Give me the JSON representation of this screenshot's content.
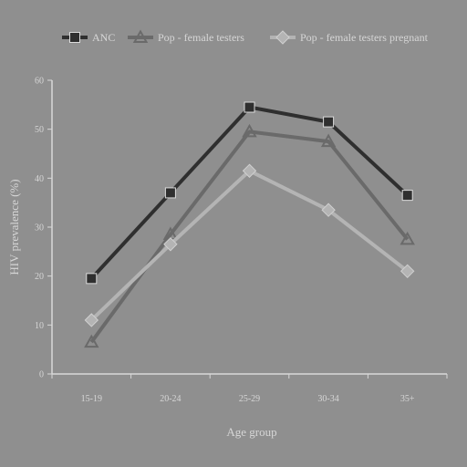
{
  "chart_data": {
    "type": "line",
    "title": "",
    "xlabel": "Age group",
    "ylabel": "HIV prevalence (%)",
    "categories": [
      "15-19",
      "20-24",
      "25-29",
      "30-34",
      "35+"
    ],
    "ylim": [
      0,
      60
    ],
    "yticks": [
      0,
      10,
      20,
      30,
      40,
      50,
      60
    ],
    "grid": false,
    "legend": "top",
    "series": [
      {
        "name": "ANC",
        "values": [
          19.5,
          37,
          54.5,
          51.5,
          36.5
        ],
        "color": "#2f2f2f",
        "marker": "square"
      },
      {
        "name": "Pop - female testers",
        "values": [
          6.5,
          28.5,
          49.5,
          47.5,
          27.5
        ],
        "color": "#6a6a6a",
        "marker": "triangle"
      },
      {
        "name": "Pop - female testers pregnant",
        "values": [
          11,
          26.5,
          41.5,
          33.5,
          21
        ],
        "color": "#b4b4b4",
        "marker": "diamond"
      }
    ]
  }
}
